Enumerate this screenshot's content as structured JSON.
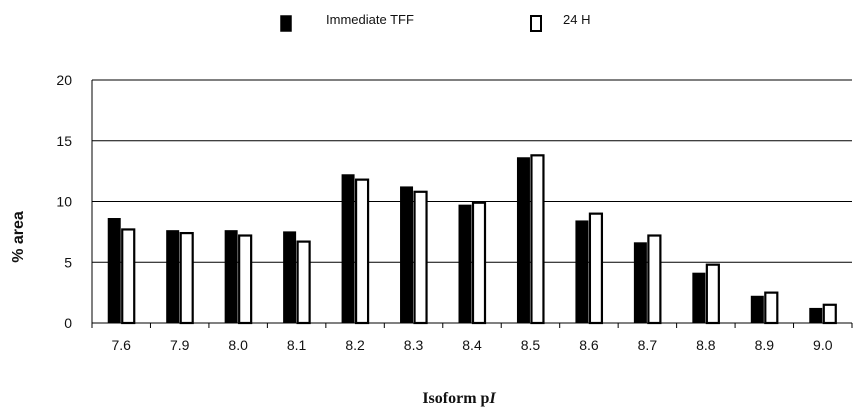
{
  "chart_data": {
    "type": "bar",
    "title": "",
    "xlabel": "Isoform pI",
    "xlabel_parts": {
      "main": "Isoform p",
      "italic": "I"
    },
    "ylabel": "% area",
    "ylim": [
      0,
      20
    ],
    "yticks": [
      "0",
      "5",
      "10",
      "15",
      "20"
    ],
    "grid": true,
    "legend_position": "top",
    "categories": [
      "7.6",
      "7.9",
      "8.0",
      "8.1",
      "8.2",
      "8.3",
      "8.4",
      "8.5",
      "8.6",
      "8.7",
      "8.8",
      "8.9",
      "9.0"
    ],
    "series": [
      {
        "name": "Immediate TFF",
        "fill": "#000000",
        "values": [
          8.6,
          7.6,
          7.6,
          7.5,
          12.2,
          11.2,
          9.7,
          13.6,
          8.4,
          6.6,
          4.1,
          2.2,
          1.2
        ]
      },
      {
        "name": "24 H",
        "fill": "#ffffff",
        "values": [
          7.7,
          7.4,
          7.2,
          6.7,
          11.8,
          10.8,
          9.9,
          13.8,
          9.0,
          7.2,
          4.8,
          2.5,
          1.5
        ]
      }
    ]
  }
}
